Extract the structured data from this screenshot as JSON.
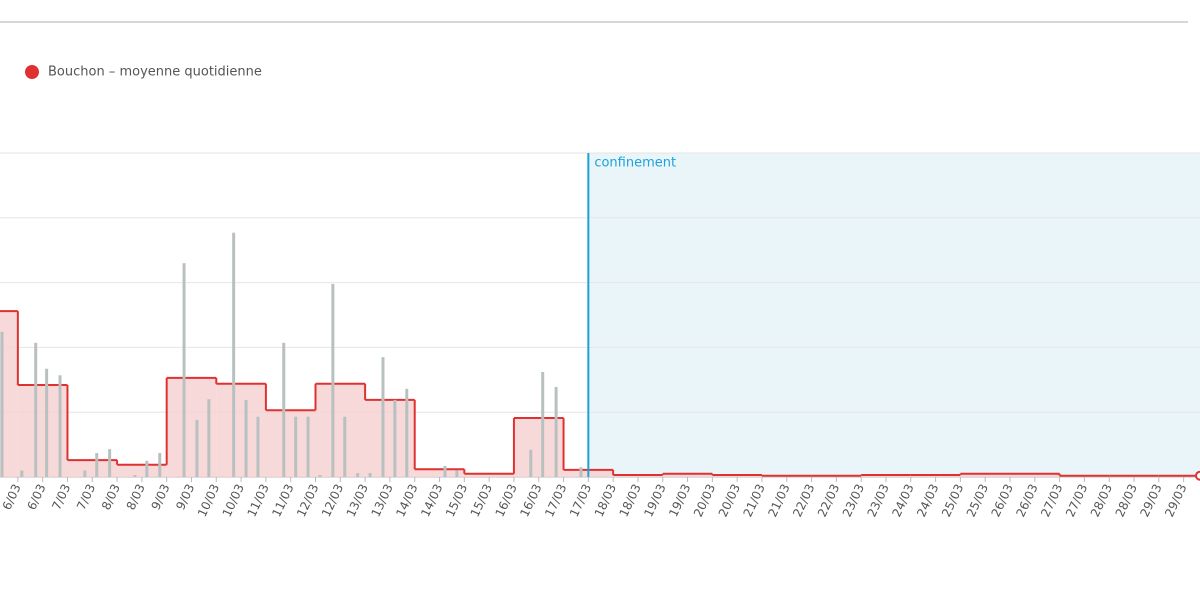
{
  "chart_data": {
    "type": "step",
    "xlim": [
      5.64,
      29.83
    ],
    "ylim": [
      0,
      5
    ],
    "yticks": [
      0,
      1,
      2,
      3,
      4,
      5
    ],
    "grid": true,
    "legend": "top-left",
    "xticks": [
      {
        "value": 6,
        "label": "6/03"
      },
      {
        "value": 6.5,
        "label": "6/03"
      },
      {
        "value": 7,
        "label": "7/03"
      },
      {
        "value": 7.5,
        "label": "7/03"
      },
      {
        "value": 8,
        "label": "8/03"
      },
      {
        "value": 8.5,
        "label": "8/03"
      },
      {
        "value": 9,
        "label": "9/03"
      },
      {
        "value": 9.5,
        "label": "9/03"
      },
      {
        "value": 10,
        "label": "10/03"
      },
      {
        "value": 10.5,
        "label": "10/03"
      },
      {
        "value": 11,
        "label": "11/03"
      },
      {
        "value": 11.5,
        "label": "11/03"
      },
      {
        "value": 12,
        "label": "12/03"
      },
      {
        "value": 12.5,
        "label": "12/03"
      },
      {
        "value": 13,
        "label": "13/03"
      },
      {
        "value": 13.5,
        "label": "13/03"
      },
      {
        "value": 14,
        "label": "14/03"
      },
      {
        "value": 14.5,
        "label": "14/03"
      },
      {
        "value": 15,
        "label": "15/03"
      },
      {
        "value": 15.5,
        "label": "15/03"
      },
      {
        "value": 16,
        "label": "16/03"
      },
      {
        "value": 16.5,
        "label": "16/03"
      },
      {
        "value": 17,
        "label": "17/03"
      },
      {
        "value": 17.5,
        "label": "17/03"
      },
      {
        "value": 18,
        "label": "18/03"
      },
      {
        "value": 18.5,
        "label": "18/03"
      },
      {
        "value": 19,
        "label": "19/03"
      },
      {
        "value": 19.5,
        "label": "19/03"
      },
      {
        "value": 20,
        "label": "20/03"
      },
      {
        "value": 20.5,
        "label": "20/03"
      },
      {
        "value": 21,
        "label": "21/03"
      },
      {
        "value": 21.5,
        "label": "21/03"
      },
      {
        "value": 22,
        "label": "22/03"
      },
      {
        "value": 22.5,
        "label": "22/03"
      },
      {
        "value": 23,
        "label": "23/03"
      },
      {
        "value": 23.5,
        "label": "23/03"
      },
      {
        "value": 24,
        "label": "24/03"
      },
      {
        "value": 24.5,
        "label": "24/03"
      },
      {
        "value": 25,
        "label": "25/03"
      },
      {
        "value": 25.5,
        "label": "25/03"
      },
      {
        "value": 26,
        "label": "26/03"
      },
      {
        "value": 26.5,
        "label": "26/03"
      },
      {
        "value": 27,
        "label": "27/03"
      },
      {
        "value": 27.5,
        "label": "27/03"
      },
      {
        "value": 28,
        "label": "28/03"
      },
      {
        "value": 28.5,
        "label": "28/03"
      },
      {
        "value": 29,
        "label": "29/03"
      },
      {
        "value": 29.5,
        "label": "29/03"
      }
    ],
    "series": [
      {
        "type": "bar",
        "color": "#b9c0c0",
        "x": [
          5.68,
          6.08,
          6.36,
          6.58,
          6.85,
          7.35,
          7.59,
          7.85,
          8.36,
          8.6,
          8.86,
          9.35,
          9.61,
          9.85,
          10.35,
          10.6,
          10.84,
          11.36,
          11.6,
          11.85,
          12.09,
          12.35,
          12.59,
          12.85,
          13.1,
          13.36,
          13.6,
          13.84,
          14.61,
          14.85,
          16.34,
          16.58,
          16.85,
          17.35
        ],
        "values": [
          2.24,
          0.1,
          2.07,
          1.67,
          1.57,
          0.1,
          0.37,
          0.43,
          0.03,
          0.25,
          0.37,
          3.3,
          0.88,
          1.2,
          3.77,
          1.19,
          0.93,
          2.07,
          0.93,
          0.93,
          0.03,
          2.98,
          0.93,
          0.06,
          0.06,
          1.85,
          1.19,
          1.36,
          0.17,
          0.1,
          0.42,
          1.62,
          1.39,
          0.15
        ]
      },
      {
        "type": "step",
        "name": "Bouchon – moyenne quotidienne",
        "color": "#e03131",
        "fill": "#f6d2d2",
        "x": [
          5,
          6,
          7,
          8,
          9,
          10,
          11,
          12,
          13,
          14,
          15,
          16,
          17,
          18,
          19,
          20,
          21,
          22,
          23,
          24,
          25,
          26,
          27,
          28,
          29
        ],
        "values": [
          2.56,
          1.42,
          0.26,
          0.19,
          1.53,
          1.44,
          1.03,
          1.44,
          1.19,
          0.12,
          0.05,
          0.91,
          0.11,
          0.03,
          0.05,
          0.03,
          0.02,
          0.02,
          0.03,
          0.03,
          0.05,
          0.05,
          0.02,
          0.02,
          0.02
        ]
      }
    ],
    "annotations": [
      {
        "text": "confinement",
        "x": 17.5,
        "color": "#1ba3d8",
        "shade": "#eaf5fa"
      }
    ]
  }
}
